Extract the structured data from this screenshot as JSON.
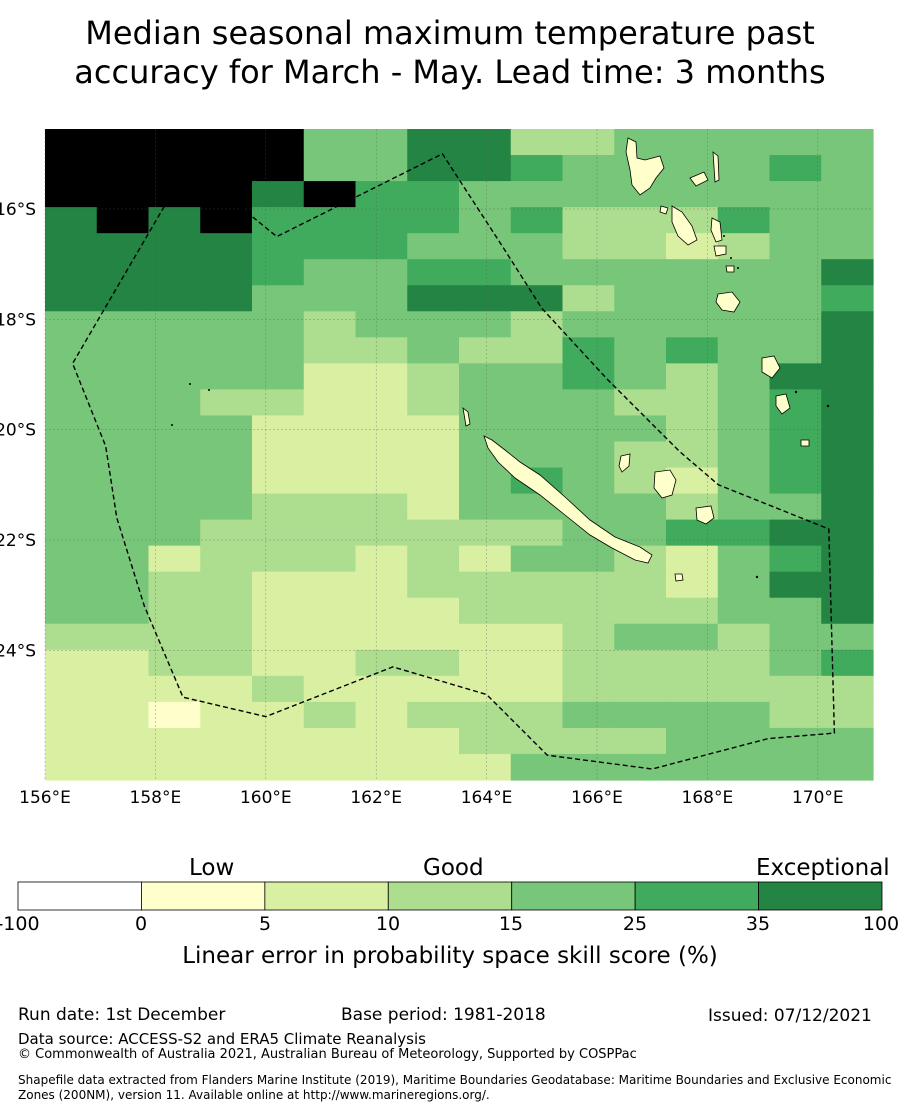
{
  "title": {
    "line1": "Median seasonal maximum temperature past",
    "line2": "accuracy for March - May. Lead time: 3 months"
  },
  "map": {
    "lon_labels": [
      "156°E",
      "158°E",
      "160°E",
      "162°E",
      "164°E",
      "166°E",
      "168°E",
      "170°E"
    ],
    "lat_labels": [
      "16°S",
      "18°S",
      "20°S",
      "22°S",
      "24°S"
    ],
    "lon_range": [
      156,
      171
    ],
    "lat_range": [
      -14.55,
      -26.35
    ],
    "grid_rows": [
      "7777744663344444",
      "7777744665444454",
      "7777675544444444",
      "6767555545333544",
      "6666555444332344",
      "6666544554444446",
      "6666444666344445",
      "4444434443444446",
      "4444433433545446",
      "4444422344543466",
      "4443322344433456",
      "4444222244443456",
      "4444222244433456",
      "4444222245432456",
      "4444333244443446",
      "4443333333445566",
      "4423332324432456",
      "4433222333332466",
      "4433222233333446",
      "3333222222344344",
      "2233223322333345",
      "2222322222333333",
      "2212232333444433",
      "2222222233334444",
      "2222222224444444"
    ],
    "eez_boundary": [
      [
        158.6,
        -15.2
      ],
      [
        156.5,
        -18.8
      ],
      [
        157.1,
        -20.3
      ],
      [
        157.3,
        -21.6
      ],
      [
        157.8,
        -23.2
      ],
      [
        158.5,
        -24.85
      ],
      [
        160.0,
        -25.2
      ],
      [
        162.3,
        -24.3
      ],
      [
        164.0,
        -24.8
      ],
      [
        165.1,
        -25.9
      ],
      [
        167.0,
        -26.15
      ],
      [
        169.1,
        -25.6
      ],
      [
        170.3,
        -25.5
      ],
      [
        170.2,
        -21.8
      ],
      [
        168.2,
        -21.0
      ],
      [
        167.5,
        -20.4
      ],
      [
        166.2,
        -19.1
      ],
      [
        165.0,
        -17.8
      ],
      [
        164.3,
        -16.7
      ],
      [
        163.2,
        -15.0
      ],
      [
        160.2,
        -16.5
      ],
      [
        158.6,
        -15.2
      ]
    ]
  },
  "colorbar": {
    "header_low": "Low",
    "header_good": "Good",
    "header_exceptional": "Exceptional",
    "tick_labels": [
      "-100",
      "0",
      "5",
      "10",
      "15",
      "25",
      "35",
      "100"
    ],
    "colors": [
      "#ffffff",
      "#ffffcc",
      "#d9f0a3",
      "#addd8e",
      "#78c679",
      "#41ab5d",
      "#238443"
    ],
    "title": "Linear error in probability space skill score (%)"
  },
  "footer": {
    "run_date": "Run date: 1st December",
    "base_period": "Base period: 1981-2018",
    "issued": "Issued: 07/12/2021",
    "data_source": "Data source: ACCESS-S2 and ERA5 Climate Reanalysis",
    "copyright": "© Commonwealth of Australia 2021, Australian Bureau of Meteorology, Supported by COSPPac",
    "shapefile_line1": "Shapefile data extracted from Flanders Marine Institute (2019), Maritime Boundaries Geodatabase: Maritime Boundaries and Exclusive Economic",
    "shapefile_line2": "Zones (200NM), version 11. Available online at http://www.marineregions.org/."
  }
}
